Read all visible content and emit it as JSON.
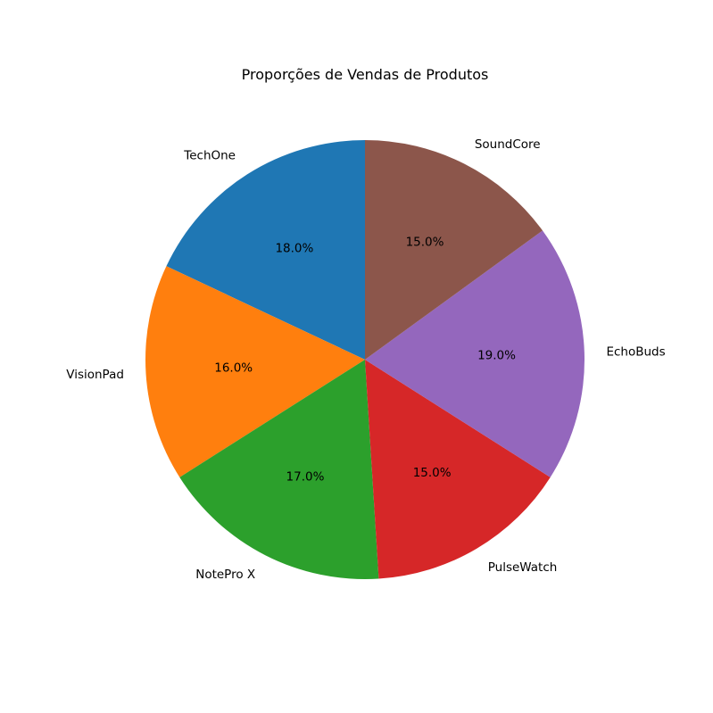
{
  "chart_data": {
    "type": "pie",
    "title": "Proporções de Vendas de Produtos",
    "start_angle_deg": 90,
    "direction": "counterclockwise",
    "slices": [
      {
        "label": "TechOne",
        "value": 18.0,
        "pct_label": "18.0%",
        "color": "#1f77b4"
      },
      {
        "label": "VisionPad",
        "value": 16.0,
        "pct_label": "16.0%",
        "color": "#ff7f0e"
      },
      {
        "label": "NotePro X",
        "value": 17.0,
        "pct_label": "17.0%",
        "color": "#2ca02c"
      },
      {
        "label": "PulseWatch",
        "value": 15.0,
        "pct_label": "15.0%",
        "color": "#d62728"
      },
      {
        "label": "EchoBuds",
        "value": 19.0,
        "pct_label": "19.0%",
        "color": "#9467bd"
      },
      {
        "label": "SoundCore",
        "value": 15.0,
        "pct_label": "15.0%",
        "color": "#8c564b"
      }
    ]
  }
}
